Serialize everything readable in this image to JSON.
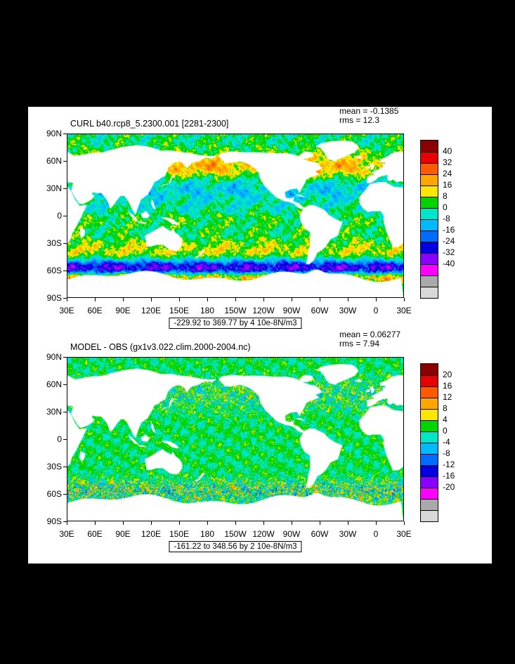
{
  "window": {
    "background": "#000000",
    "plot_background": "#ffffff"
  },
  "panels": [
    {
      "title": "CURL b40.rcp8_5.2300.001 [2281-2300]",
      "mean_label": "mean = -0.1385",
      "rms_label": "rms = 12.3",
      "caption": "-229.92 to 369.77 by 4 10e-8N/m3",
      "colorbar_labels": [
        "40",
        "32",
        "24",
        "16",
        "8",
        "0",
        "-8",
        "-16",
        "-24",
        "-32",
        "-40"
      ]
    },
    {
      "title": "MODEL - OBS (gx1v3.022.clim.2000-2004.nc)",
      "mean_label": "mean = 0.06277",
      "rms_label": "rms = 7.94",
      "caption": "-161.22 to 348.56 by 2 10e-8N/m3",
      "colorbar_labels": [
        "20",
        "16",
        "12",
        "8",
        "4",
        "0",
        "-4",
        "-8",
        "-12",
        "-16",
        "-20"
      ]
    }
  ],
  "axes": {
    "lon_labels": [
      "30E",
      "60E",
      "90E",
      "120E",
      "150E",
      "180",
      "150W",
      "120W",
      "90W",
      "60W",
      "30W",
      "0",
      "30E"
    ],
    "lat_labels": [
      "90N",
      "60N",
      "30N",
      "0",
      "30S",
      "60S",
      "90S"
    ]
  },
  "chart_data": [
    {
      "type": "heatmap",
      "title": "CURL b40.rcp8_5.2300.001 [2281-2300]",
      "stats": {
        "mean": -0.1385,
        "rms": 12.3
      },
      "units": "10e-8N/m3",
      "field_min": -229.92,
      "field_max": 369.77,
      "contour_interval": 4,
      "x_tick_labels": [
        "30E",
        "60E",
        "90E",
        "120E",
        "150E",
        "180",
        "150W",
        "120W",
        "90W",
        "60W",
        "30W",
        "0",
        "30E"
      ],
      "y_tick_labels": [
        "90N",
        "60N",
        "30N",
        "0",
        "30S",
        "60S",
        "90S"
      ],
      "x_range": "30E eastward 360 degrees to 30E",
      "y_range": "90S to 90N",
      "legend_position": "right",
      "colorbar": {
        "levels": [
          40,
          32,
          24,
          16,
          8,
          0,
          -8,
          -16,
          -24,
          -32,
          -40
        ],
        "colors": [
          "#8b0000",
          "#e80000",
          "#ff5a00",
          "#ffa600",
          "#ffe600",
          "#00d400",
          "#00e6c8",
          "#00baff",
          "#006cff",
          "#0000e0",
          "#8800ff",
          "#ff00ff"
        ],
        "extra_colors": [
          "#aaaaaa",
          "#d8d8d8"
        ]
      }
    },
    {
      "type": "heatmap",
      "title": "MODEL - OBS (gx1v3.022.clim.2000-2004.nc)",
      "stats": {
        "mean": 0.06277,
        "rms": 7.94
      },
      "units": "10e-8N/m3",
      "field_min": -161.22,
      "field_max": 348.56,
      "contour_interval": 2,
      "x_tick_labels": [
        "30E",
        "60E",
        "90E",
        "120E",
        "150E",
        "180",
        "150W",
        "120W",
        "90W",
        "60W",
        "30W",
        "0",
        "30E"
      ],
      "y_tick_labels": [
        "90N",
        "60N",
        "30N",
        "0",
        "30S",
        "60S",
        "90S"
      ],
      "x_range": "30E eastward 360 degrees to 30E",
      "y_range": "90S to 90N",
      "legend_position": "right",
      "colorbar": {
        "levels": [
          20,
          16,
          12,
          8,
          4,
          0,
          -4,
          -8,
          -12,
          -16,
          -20
        ],
        "colors": [
          "#8b0000",
          "#e80000",
          "#ff5a00",
          "#ffa600",
          "#ffe600",
          "#00d400",
          "#00e6c8",
          "#00baff",
          "#006cff",
          "#0000e0",
          "#8800ff",
          "#ff00ff"
        ],
        "extra_colors": [
          "#aaaaaa",
          "#d8d8d8"
        ]
      }
    }
  ]
}
